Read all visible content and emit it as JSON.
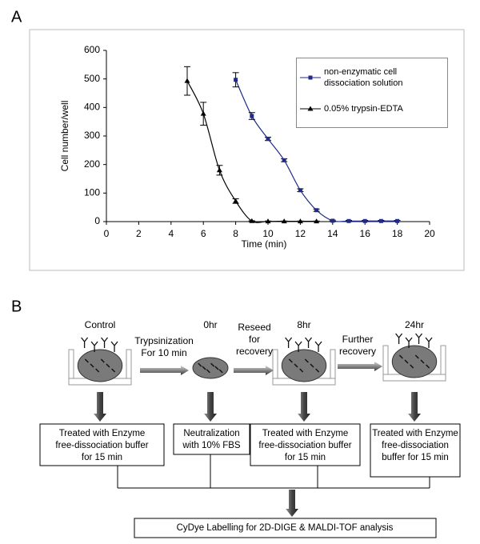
{
  "figure": {
    "panel_a": "A",
    "panel_b": "B"
  },
  "chart_data": {
    "type": "line",
    "xlabel": "Time (min)",
    "ylabel": "Cell number/well",
    "xlim": [
      0,
      20
    ],
    "xticks": [
      0,
      2,
      4,
      6,
      8,
      10,
      12,
      14,
      16,
      18,
      20
    ],
    "ylim": [
      0,
      600
    ],
    "yticks": [
      0,
      100,
      200,
      300,
      400,
      500,
      600
    ],
    "grid": false,
    "legend": "upper right",
    "series": [
      {
        "name": "non-enzymatic cell dissociation solution",
        "color": "#1f2a8a",
        "marker": "square",
        "x": [
          8,
          9,
          10,
          11,
          12,
          13,
          14,
          15,
          16,
          17,
          18
        ],
        "values": [
          497,
          370,
          290,
          215,
          110,
          40,
          3,
          2,
          2,
          2,
          2
        ],
        "errors": [
          25,
          12,
          6,
          5,
          5,
          4,
          2,
          2,
          2,
          2,
          2
        ]
      },
      {
        "name": "0.05% trypsin-EDTA",
        "color": "#000000",
        "marker": "triangle",
        "x": [
          5,
          6,
          7,
          8,
          9,
          10,
          11,
          12,
          13
        ],
        "values": [
          493,
          378,
          180,
          72,
          2,
          1,
          1,
          1,
          1
        ],
        "errors": [
          50,
          40,
          17,
          8,
          1,
          1,
          1,
          1,
          1
        ]
      }
    ]
  },
  "diagram": {
    "stages": [
      "Control",
      "0hr",
      "8hr",
      "24hr"
    ],
    "transitions": [
      [
        "Trypsinization",
        "For 10 min"
      ],
      [
        "Reseed",
        "for",
        "recovery"
      ],
      [
        "Further",
        "recovery"
      ]
    ],
    "treatments": [
      [
        "Treated with Enzyme",
        "free-dissociation buffer",
        "for 15 min"
      ],
      [
        "Neutralization",
        "with 10% FBS"
      ],
      [
        "Treated with Enzyme",
        "free-dissociation buffer",
        "for 15 min"
      ],
      [
        "Treated with Enzyme",
        "free-dissociation",
        "buffer for 15 min"
      ]
    ],
    "final": "CyDye Labelling for 2D-DIGE & MALDI-TOF analysis"
  }
}
